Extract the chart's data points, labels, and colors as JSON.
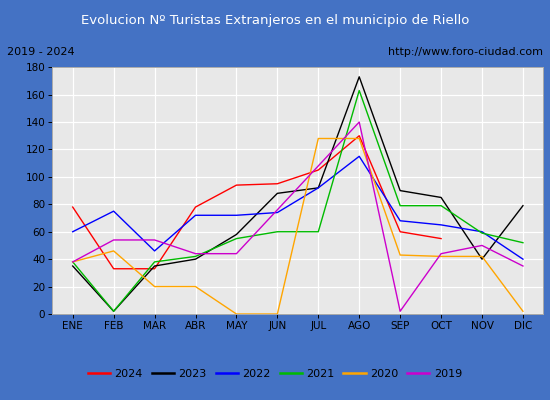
{
  "title": "Evolucion Nº Turistas Extranjeros en el municipio de Riello",
  "subtitle_left": "2019 - 2024",
  "subtitle_right": "http://www.foro-ciudad.com",
  "months": [
    "ENE",
    "FEB",
    "MAR",
    "ABR",
    "MAY",
    "JUN",
    "JUL",
    "AGO",
    "SEP",
    "OCT",
    "NOV",
    "DIC"
  ],
  "ylim": [
    0,
    180
  ],
  "yticks": [
    0,
    20,
    40,
    60,
    80,
    100,
    120,
    140,
    160,
    180
  ],
  "series": [
    {
      "year": "2024",
      "color": "#ff0000",
      "values": [
        78,
        33,
        33,
        78,
        94,
        95,
        105,
        130,
        60,
        55,
        null,
        null
      ]
    },
    {
      "year": "2023",
      "color": "#000000",
      "values": [
        35,
        2,
        35,
        40,
        58,
        88,
        92,
        173,
        90,
        85,
        40,
        79
      ]
    },
    {
      "year": "2022",
      "color": "#0000ff",
      "values": [
        60,
        75,
        46,
        72,
        72,
        74,
        92,
        115,
        68,
        65,
        60,
        40
      ]
    },
    {
      "year": "2021",
      "color": "#00bb00",
      "values": [
        38,
        2,
        38,
        42,
        55,
        60,
        60,
        163,
        79,
        79,
        59,
        52
      ]
    },
    {
      "year": "2020",
      "color": "#ffa500",
      "values": [
        38,
        46,
        20,
        20,
        0,
        0,
        128,
        128,
        43,
        42,
        42,
        2
      ]
    },
    {
      "year": "2019",
      "color": "#cc00cc",
      "values": [
        38,
        54,
        54,
        44,
        44,
        null,
        null,
        140,
        2,
        44,
        50,
        35
      ]
    }
  ],
  "title_bg_color": "#4472c4",
  "title_text_color": "#ffffff",
  "plot_bg_color": "#e8e8e8",
  "grid_color": "#ffffff",
  "subtitle_bg_color": "#ffffff",
  "border_color": "#4472c4",
  "legend_border_color": "#aaaaaa"
}
